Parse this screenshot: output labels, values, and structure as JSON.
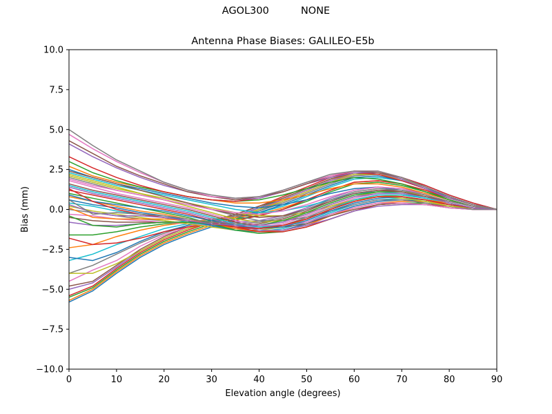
{
  "figure": {
    "suptitle": "AGOL300          NONE"
  },
  "colors": {
    "cycle": [
      "#1f77b4",
      "#ff7f0e",
      "#2ca02c",
      "#d62728",
      "#9467bd",
      "#8c564b",
      "#e377c2",
      "#7f7f7f",
      "#bcbd22",
      "#17becf"
    ]
  },
  "chart_data": {
    "type": "line",
    "title": "Antenna Phase Biases: GALILEO-E5b",
    "xlabel": "Elevation angle (degrees)",
    "ylabel": "Bias (mm)",
    "xlim": [
      0,
      90
    ],
    "ylim": [
      -10,
      10
    ],
    "xticks": [
      "0",
      "10",
      "20",
      "30",
      "40",
      "50",
      "60",
      "70",
      "80",
      "90"
    ],
    "yticks": [
      "10.0",
      "7.5",
      "5.0",
      "2.5",
      "0.0",
      "−2.5",
      "−5.0",
      "−7.5",
      "−10.0"
    ],
    "grid": false,
    "legend": "none",
    "x": [
      0,
      5,
      10,
      15,
      20,
      25,
      30,
      35,
      40,
      45,
      50,
      55,
      60,
      65,
      70,
      75,
      80,
      85,
      90
    ],
    "series": [
      {
        "values": [
          -5.8,
          -5.1,
          -4.0,
          -3.0,
          -2.2,
          -1.6,
          -1.1,
          -0.6,
          -0.1,
          0.5,
          1.1,
          1.7,
          2.2,
          2.3,
          2.0,
          1.5,
          0.9,
          0.4,
          0.0
        ]
      },
      {
        "values": [
          -5.7,
          -5.0,
          -3.9,
          -2.9,
          -2.1,
          -1.5,
          -1.0,
          -0.5,
          0.0,
          0.6,
          1.2,
          1.8,
          2.3,
          2.3,
          2.0,
          1.4,
          0.8,
          0.3,
          0.0
        ]
      },
      {
        "values": [
          -5.5,
          -4.9,
          -3.8,
          -2.8,
          -2.0,
          -1.4,
          -0.9,
          -0.4,
          0.1,
          0.7,
          1.3,
          1.9,
          2.3,
          2.3,
          2.0,
          1.4,
          0.8,
          0.3,
          0.0
        ]
      },
      {
        "values": [
          -5.4,
          -4.8,
          -3.7,
          -2.7,
          -1.9,
          -1.3,
          -0.8,
          -0.3,
          0.2,
          0.8,
          1.4,
          2.0,
          2.4,
          2.4,
          2.0,
          1.5,
          0.9,
          0.4,
          0.0
        ]
      },
      {
        "values": [
          -5.0,
          -4.6,
          -3.6,
          -2.6,
          -1.8,
          -1.2,
          -0.8,
          -0.4,
          0.1,
          0.6,
          1.2,
          1.8,
          2.2,
          2.2,
          1.9,
          1.4,
          0.8,
          0.3,
          0.0
        ]
      },
      {
        "values": [
          -4.8,
          -4.5,
          -3.5,
          -2.5,
          -1.7,
          -1.1,
          -0.7,
          -0.3,
          0.2,
          0.7,
          1.3,
          1.9,
          2.3,
          2.3,
          1.9,
          1.4,
          0.8,
          0.3,
          0.0
        ]
      },
      {
        "values": [
          -4.5,
          -3.8,
          -3.2,
          -2.3,
          -1.6,
          -1.1,
          -0.7,
          -0.4,
          0.0,
          0.5,
          1.1,
          1.7,
          2.1,
          2.2,
          1.9,
          1.4,
          0.8,
          0.3,
          0.0
        ]
      },
      {
        "values": [
          -4.0,
          -3.5,
          -2.8,
          -2.1,
          -1.5,
          -1.0,
          -0.7,
          -0.4,
          -0.1,
          0.4,
          1.0,
          1.6,
          2.1,
          2.2,
          1.9,
          1.4,
          0.8,
          0.3,
          0.0
        ]
      },
      {
        "values": [
          -4.0,
          -4.0,
          -3.4,
          -2.6,
          -1.8,
          -1.2,
          -0.8,
          -0.5,
          0.0,
          0.5,
          1.1,
          1.7,
          2.2,
          2.2,
          1.9,
          1.4,
          0.8,
          0.3,
          0.0
        ]
      },
      {
        "values": [
          -3.2,
          -2.8,
          -2.2,
          -1.7,
          -1.2,
          -0.9,
          -0.7,
          -0.5,
          -0.2,
          0.2,
          0.8,
          1.4,
          1.9,
          2.0,
          1.8,
          1.3,
          0.8,
          0.3,
          0.0
        ]
      },
      {
        "values": [
          -3.0,
          -3.2,
          -2.7,
          -2.0,
          -1.4,
          -1.0,
          -0.7,
          -0.5,
          -0.2,
          0.3,
          0.9,
          1.5,
          2.0,
          2.1,
          1.8,
          1.3,
          0.8,
          0.3,
          0.0
        ]
      },
      {
        "values": [
          -2.4,
          -2.2,
          -1.7,
          -1.3,
          -1.0,
          -0.8,
          -0.6,
          -0.5,
          -0.3,
          0.1,
          0.6,
          1.2,
          1.7,
          1.8,
          1.6,
          1.2,
          0.7,
          0.3,
          0.0
        ]
      },
      {
        "values": [
          -1.6,
          -1.6,
          -1.4,
          -1.1,
          -0.9,
          -0.8,
          -0.7,
          -0.6,
          -0.4,
          0.0,
          0.5,
          1.1,
          1.6,
          1.7,
          1.5,
          1.1,
          0.7,
          0.3,
          0.0
        ]
      },
      {
        "values": [
          -1.8,
          -2.2,
          -2.1,
          -1.8,
          -1.4,
          -1.1,
          -0.9,
          -0.7,
          -0.4,
          0.0,
          0.6,
          1.2,
          1.7,
          1.8,
          1.6,
          1.2,
          0.7,
          0.3,
          0.0
        ]
      },
      {
        "values": [
          -0.8,
          -1.0,
          -1.0,
          -0.9,
          -0.8,
          -0.8,
          -0.8,
          -0.8,
          -0.7,
          -0.4,
          0.1,
          0.7,
          1.2,
          1.4,
          1.3,
          1.0,
          0.6,
          0.2,
          0.0
        ]
      },
      {
        "values": [
          -0.5,
          -0.7,
          -0.8,
          -0.8,
          -0.8,
          -0.8,
          -0.9,
          -1.0,
          -0.9,
          -0.6,
          -0.1,
          0.5,
          1.0,
          1.2,
          1.2,
          0.9,
          0.5,
          0.2,
          0.0
        ]
      },
      {
        "values": [
          -0.3,
          -0.4,
          -0.6,
          -0.7,
          -0.8,
          -0.9,
          -1.0,
          -1.1,
          -1.1,
          -0.9,
          -0.4,
          0.2,
          0.7,
          1.0,
          1.0,
          0.8,
          0.5,
          0.2,
          0.0
        ]
      },
      {
        "values": [
          0.0,
          -0.2,
          -0.4,
          -0.6,
          -0.7,
          -0.9,
          -1.1,
          -1.2,
          -1.2,
          -1.0,
          -0.5,
          0.1,
          0.6,
          0.9,
          0.9,
          0.7,
          0.4,
          0.1,
          0.0
        ]
      },
      {
        "values": [
          0.2,
          -0.1,
          -0.3,
          -0.5,
          -0.7,
          -0.9,
          -1.1,
          -1.3,
          -1.3,
          -1.1,
          -0.6,
          0.0,
          0.5,
          0.8,
          0.9,
          0.7,
          0.4,
          0.1,
          0.0
        ]
      },
      {
        "values": [
          0.4,
          0.2,
          -0.1,
          -0.3,
          -0.5,
          -0.8,
          -1.0,
          -1.3,
          -1.4,
          -1.2,
          -0.8,
          -0.2,
          0.3,
          0.6,
          0.7,
          0.6,
          0.3,
          0.1,
          0.0
        ]
      },
      {
        "values": [
          0.6,
          0.3,
          0.1,
          -0.2,
          -0.4,
          -0.7,
          -1.0,
          -1.3,
          -1.4,
          -1.3,
          -0.9,
          -0.3,
          0.2,
          0.5,
          0.6,
          0.5,
          0.3,
          0.1,
          0.0
        ]
      },
      {
        "values": [
          0.8,
          0.5,
          0.2,
          -0.1,
          -0.3,
          -0.6,
          -0.9,
          -1.2,
          -1.4,
          -1.3,
          -1.0,
          -0.4,
          0.1,
          0.4,
          0.5,
          0.5,
          0.3,
          0.1,
          0.0
        ]
      },
      {
        "values": [
          1.0,
          0.7,
          0.4,
          0.1,
          -0.2,
          -0.5,
          -0.9,
          -1.3,
          -1.5,
          -1.4,
          -1.1,
          -0.6,
          -0.1,
          0.3,
          0.4,
          0.4,
          0.2,
          0.1,
          0.0
        ]
      },
      {
        "values": [
          1.2,
          0.9,
          0.6,
          0.3,
          0.0,
          -0.3,
          -0.7,
          -1.1,
          -1.4,
          -1.4,
          -1.1,
          -0.6,
          -0.1,
          0.3,
          0.4,
          0.3,
          0.2,
          0.0,
          0.0
        ]
      },
      {
        "values": [
          1.4,
          1.0,
          0.7,
          0.4,
          0.1,
          -0.2,
          -0.6,
          -1.0,
          -1.3,
          -1.3,
          -1.0,
          -0.6,
          -0.1,
          0.2,
          0.3,
          0.3,
          0.1,
          0.0,
          0.0
        ]
      },
      {
        "values": [
          1.6,
          1.2,
          0.9,
          0.6,
          0.3,
          0.0,
          -0.4,
          -0.8,
          -1.1,
          -1.1,
          -0.9,
          -0.4,
          0.0,
          0.3,
          0.4,
          0.3,
          0.1,
          0.0,
          0.0
        ]
      },
      {
        "values": [
          1.8,
          1.4,
          1.0,
          0.7,
          0.4,
          0.1,
          -0.3,
          -0.7,
          -1.0,
          -1.0,
          -0.8,
          -0.3,
          0.1,
          0.4,
          0.4,
          0.3,
          0.1,
          0.0,
          0.0
        ]
      },
      {
        "values": [
          2.0,
          1.6,
          1.2,
          0.9,
          0.6,
          0.3,
          0.0,
          -0.4,
          -0.7,
          -0.7,
          -0.5,
          -0.1,
          0.3,
          0.6,
          0.6,
          0.4,
          0.2,
          0.0,
          0.0
        ]
      },
      {
        "values": [
          2.1,
          1.7,
          1.3,
          1.0,
          0.7,
          0.4,
          0.1,
          -0.2,
          -0.4,
          -0.4,
          -0.2,
          0.2,
          0.6,
          0.8,
          0.7,
          0.5,
          0.2,
          0.1,
          0.0
        ]
      },
      {
        "values": [
          2.3,
          1.9,
          1.5,
          1.2,
          0.9,
          0.6,
          0.3,
          0.0,
          -0.2,
          -0.1,
          0.2,
          0.6,
          1.0,
          1.1,
          1.0,
          0.7,
          0.4,
          0.1,
          0.0
        ]
      },
      {
        "values": [
          2.5,
          2.0,
          1.6,
          1.3,
          1.0,
          0.7,
          0.4,
          0.2,
          0.1,
          0.3,
          0.6,
          1.0,
          1.3,
          1.4,
          1.2,
          0.9,
          0.5,
          0.2,
          0.0
        ]
      },
      {
        "values": [
          2.7,
          2.1,
          1.7,
          1.4,
          1.1,
          0.8,
          0.6,
          0.4,
          0.4,
          0.6,
          0.9,
          1.3,
          1.6,
          1.6,
          1.4,
          1.0,
          0.6,
          0.2,
          0.0
        ]
      },
      {
        "values": [
          3.0,
          2.3,
          1.8,
          1.4,
          1.1,
          0.8,
          0.6,
          0.5,
          0.6,
          0.9,
          1.3,
          1.7,
          2.0,
          1.9,
          1.6,
          1.1,
          0.6,
          0.2,
          0.0
        ]
      },
      {
        "values": [
          3.3,
          2.6,
          2.0,
          1.5,
          1.1,
          0.8,
          0.6,
          0.5,
          0.7,
          1.1,
          1.6,
          2.0,
          2.3,
          2.2,
          1.8,
          1.3,
          0.7,
          0.3,
          0.0
        ]
      },
      {
        "values": [
          4.1,
          3.3,
          2.6,
          2.0,
          1.5,
          1.1,
          0.8,
          0.6,
          0.7,
          1.1,
          1.6,
          2.0,
          2.3,
          2.3,
          1.9,
          1.3,
          0.7,
          0.3,
          0.0
        ]
      },
      {
        "values": [
          4.3,
          3.5,
          2.7,
          2.1,
          1.6,
          1.1,
          0.8,
          0.6,
          0.8,
          1.1,
          1.6,
          2.1,
          2.4,
          2.3,
          2.0,
          1.4,
          0.8,
          0.3,
          0.0
        ]
      },
      {
        "values": [
          4.7,
          3.8,
          3.0,
          2.3,
          1.7,
          1.2,
          0.8,
          0.7,
          0.8,
          1.2,
          1.7,
          2.1,
          2.4,
          2.4,
          2.0,
          1.4,
          0.8,
          0.3,
          0.0
        ]
      },
      {
        "values": [
          5.0,
          4.0,
          3.1,
          2.4,
          1.7,
          1.2,
          0.9,
          0.7,
          0.8,
          1.2,
          1.7,
          2.2,
          2.4,
          2.4,
          2.0,
          1.4,
          0.8,
          0.3,
          0.0
        ]
      },
      {
        "values": [
          2.2,
          1.8,
          1.4,
          1.0,
          0.6,
          0.2,
          -0.2,
          -0.6,
          -0.8,
          -0.7,
          -0.3,
          0.3,
          0.8,
          1.1,
          1.1,
          0.9,
          0.5,
          0.2,
          0.0
        ]
      },
      {
        "values": [
          1.5,
          1.1,
          0.8,
          0.5,
          0.2,
          -0.1,
          -0.5,
          -0.9,
          -1.1,
          -1.0,
          -0.6,
          0.0,
          0.6,
          0.9,
          0.9,
          0.7,
          0.4,
          0.1,
          0.0
        ]
      },
      {
        "values": [
          0.9,
          0.5,
          0.3,
          0.1,
          -0.1,
          -0.4,
          -0.7,
          -1.0,
          -1.2,
          -1.1,
          -0.7,
          -0.1,
          0.4,
          0.7,
          0.8,
          0.6,
          0.3,
          0.1,
          0.0
        ]
      },
      {
        "values": [
          0.1,
          -0.5,
          -0.6,
          -0.6,
          -0.6,
          -0.7,
          -0.9,
          -1.1,
          -1.2,
          -1.0,
          -0.6,
          0.0,
          0.5,
          0.8,
          0.8,
          0.6,
          0.4,
          0.1,
          0.0
        ]
      },
      {
        "values": [
          -0.4,
          -1.0,
          -1.1,
          -0.9,
          -0.8,
          -0.8,
          -0.9,
          -1.0,
          -1.0,
          -0.7,
          -0.2,
          0.4,
          0.9,
          1.1,
          1.1,
          0.8,
          0.5,
          0.2,
          0.0
        ]
      },
      {
        "values": [
          1.3,
          0.5,
          0.0,
          -0.3,
          -0.5,
          -0.7,
          -0.9,
          -1.1,
          -1.2,
          -1.0,
          -0.6,
          0.0,
          0.5,
          0.8,
          0.8,
          0.6,
          0.3,
          0.1,
          0.0
        ]
      },
      {
        "values": [
          0.3,
          -0.2,
          -0.4,
          -0.4,
          -0.5,
          -0.7,
          -0.9,
          -1.0,
          -1.0,
          -0.8,
          -0.3,
          0.3,
          0.8,
          1.0,
          1.0,
          0.8,
          0.4,
          0.1,
          0.0
        ]
      },
      {
        "values": [
          2.4,
          2.0,
          1.6,
          1.2,
          0.8,
          0.4,
          0.0,
          -0.3,
          -0.5,
          -0.4,
          0.0,
          0.5,
          1.0,
          1.2,
          1.1,
          0.8,
          0.5,
          0.2,
          0.0
        ]
      },
      {
        "values": [
          1.9,
          1.5,
          1.2,
          0.9,
          0.6,
          0.3,
          0.0,
          -0.2,
          -0.3,
          -0.1,
          0.3,
          0.8,
          1.2,
          1.4,
          1.3,
          0.9,
          0.5,
          0.2,
          0.0
        ]
      },
      {
        "values": [
          0.6,
          -0.3,
          -0.2,
          -0.3,
          -0.4,
          -0.6,
          -0.8,
          -0.9,
          -0.8,
          -0.5,
          0.0,
          0.6,
          1.1,
          1.3,
          1.2,
          0.9,
          0.5,
          0.2,
          0.0
        ]
      }
    ]
  }
}
